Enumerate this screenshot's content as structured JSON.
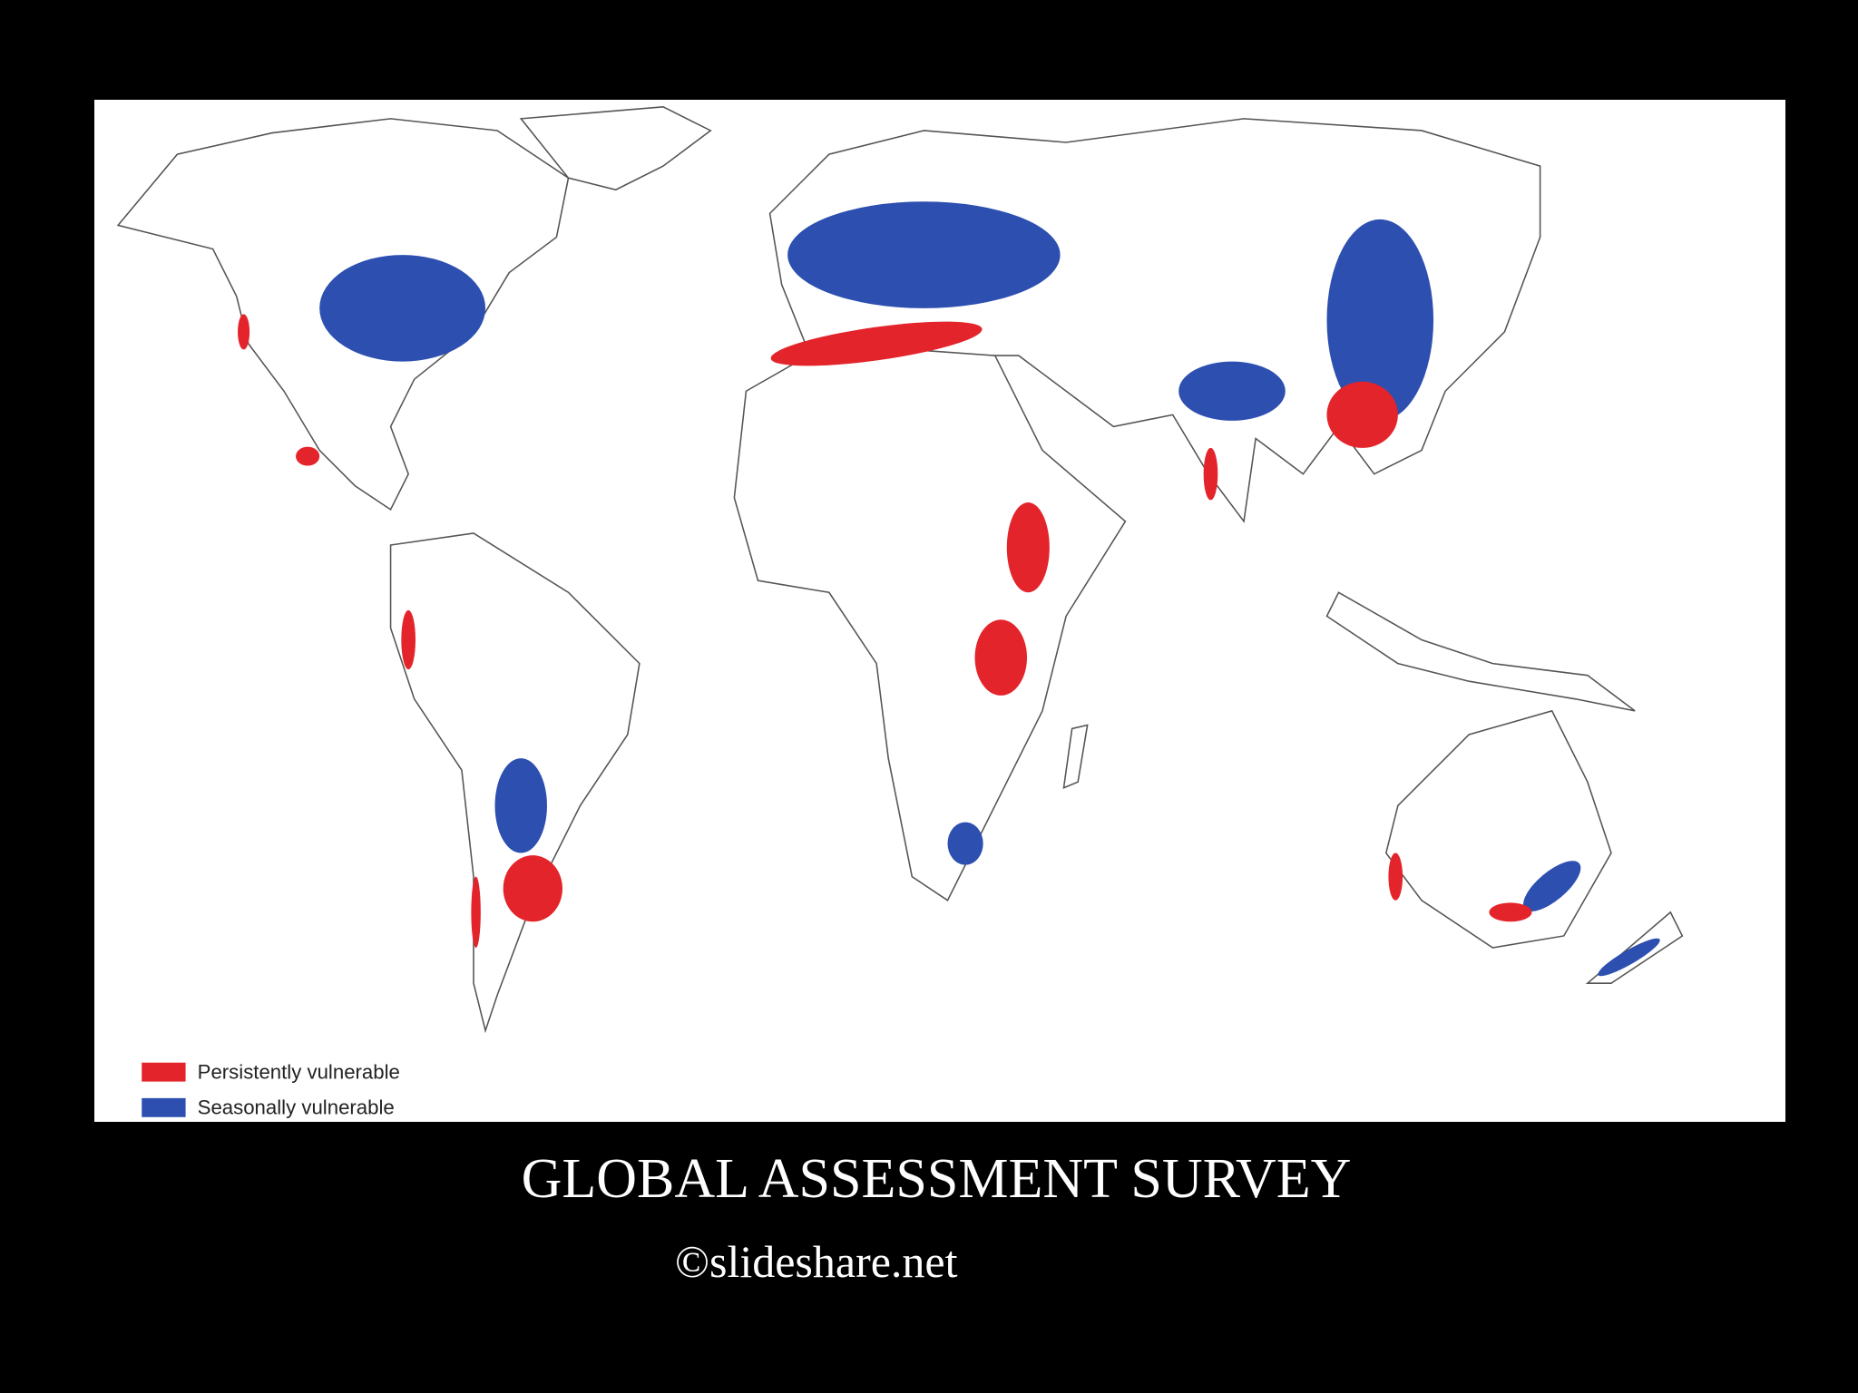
{
  "map": {
    "legend": [
      {
        "label": "Persistently vulnerable",
        "color": "#e3242b"
      },
      {
        "label": "Seasonally vulnerable",
        "color": "#2c4fb0"
      }
    ]
  },
  "caption": {
    "title": "GLOBAL ASSESSMENT SURVEY",
    "credit": "©slideshare.net"
  }
}
